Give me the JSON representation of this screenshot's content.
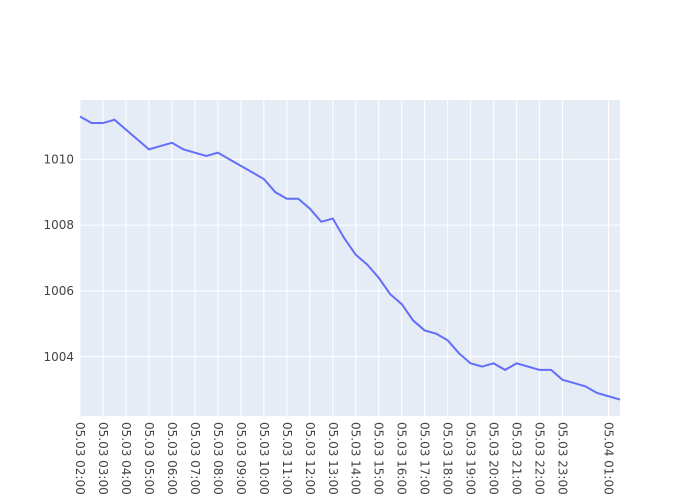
{
  "chart_data": {
    "type": "line",
    "title": "",
    "xlabel": "",
    "ylabel": "",
    "grid": true,
    "x": [
      "05.03 02:00",
      "05.03 02:30",
      "05.03 03:00",
      "05.03 03:30",
      "05.03 04:00",
      "05.03 04:30",
      "05.03 05:00",
      "05.03 05:30",
      "05.03 06:00",
      "05.03 06:30",
      "05.03 07:00",
      "05.03 07:30",
      "05.03 08:00",
      "05.03 08:30",
      "05.03 09:00",
      "05.03 09:30",
      "05.03 10:00",
      "05.03 10:30",
      "05.03 11:00",
      "05.03 11:30",
      "05.03 12:00",
      "05.03 12:30",
      "05.03 13:00",
      "05.03 13:30",
      "05.03 14:00",
      "05.03 14:30",
      "05.03 15:00",
      "05.03 15:30",
      "05.03 16:00",
      "05.03 16:30",
      "05.03 17:00",
      "05.03 17:30",
      "05.03 18:00",
      "05.03 18:30",
      "05.03 19:00",
      "05.03 19:30",
      "05.03 20:00",
      "05.03 20:30",
      "05.03 21:00",
      "05.03 21:30",
      "05.03 22:00",
      "05.03 22:30",
      "05.03 23:00",
      "05.03 23:30",
      "05.04 00:00",
      "05.04 00:30",
      "05.04 01:00",
      "05.04 01:30"
    ],
    "series": [
      {
        "name": "",
        "color": "#636efa",
        "values": [
          1011.3,
          1011.1,
          1011.1,
          1011.2,
          1010.9,
          1010.6,
          1010.3,
          1010.4,
          1010.5,
          1010.3,
          1010.2,
          1010.1,
          1010.2,
          1010.0,
          1009.8,
          1009.6,
          1009.4,
          1009.0,
          1008.8,
          1008.8,
          1008.5,
          1008.1,
          1008.2,
          1007.6,
          1007.1,
          1006.8,
          1006.4,
          1005.9,
          1005.6,
          1005.1,
          1004.8,
          1004.7,
          1004.5,
          1004.1,
          1003.8,
          1003.7,
          1003.8,
          1003.6,
          1003.8,
          1003.7,
          1003.6,
          1003.6,
          1003.3,
          1003.2,
          1003.1,
          1002.9,
          1002.8,
          1002.7
        ]
      }
    ],
    "x_tick_labels": [
      "05.03 02:00",
      "05.03 03:00",
      "05.03 04:00",
      "05.03 05:00",
      "05.03 06:00",
      "05.03 07:00",
      "05.03 08:00",
      "05.03 09:00",
      "05.03 10:00",
      "05.03 11:00",
      "05.03 12:00",
      "05.03 13:00",
      "05.03 14:00",
      "05.03 15:00",
      "05.03 16:00",
      "05.03 17:00",
      "05.03 18:00",
      "05.03 19:00",
      "05.03 20:00",
      "05.03 21:00",
      "05.03 22:00",
      "05.03 23:00",
      "05.04 01:00"
    ],
    "y_ticks": [
      1004,
      1006,
      1008,
      1010
    ],
    "y_tick_labels": [
      "1004",
      "1006",
      "1008",
      "1010"
    ],
    "xlim": [
      "05.03 02:00",
      "05.04 01:30"
    ],
    "ylim": [
      1002.2,
      1011.8
    ],
    "colors": {
      "plot_background": "#e5ecf6",
      "grid": "#ffffff",
      "line": "#636efa",
      "tick_text": "#444444"
    }
  }
}
